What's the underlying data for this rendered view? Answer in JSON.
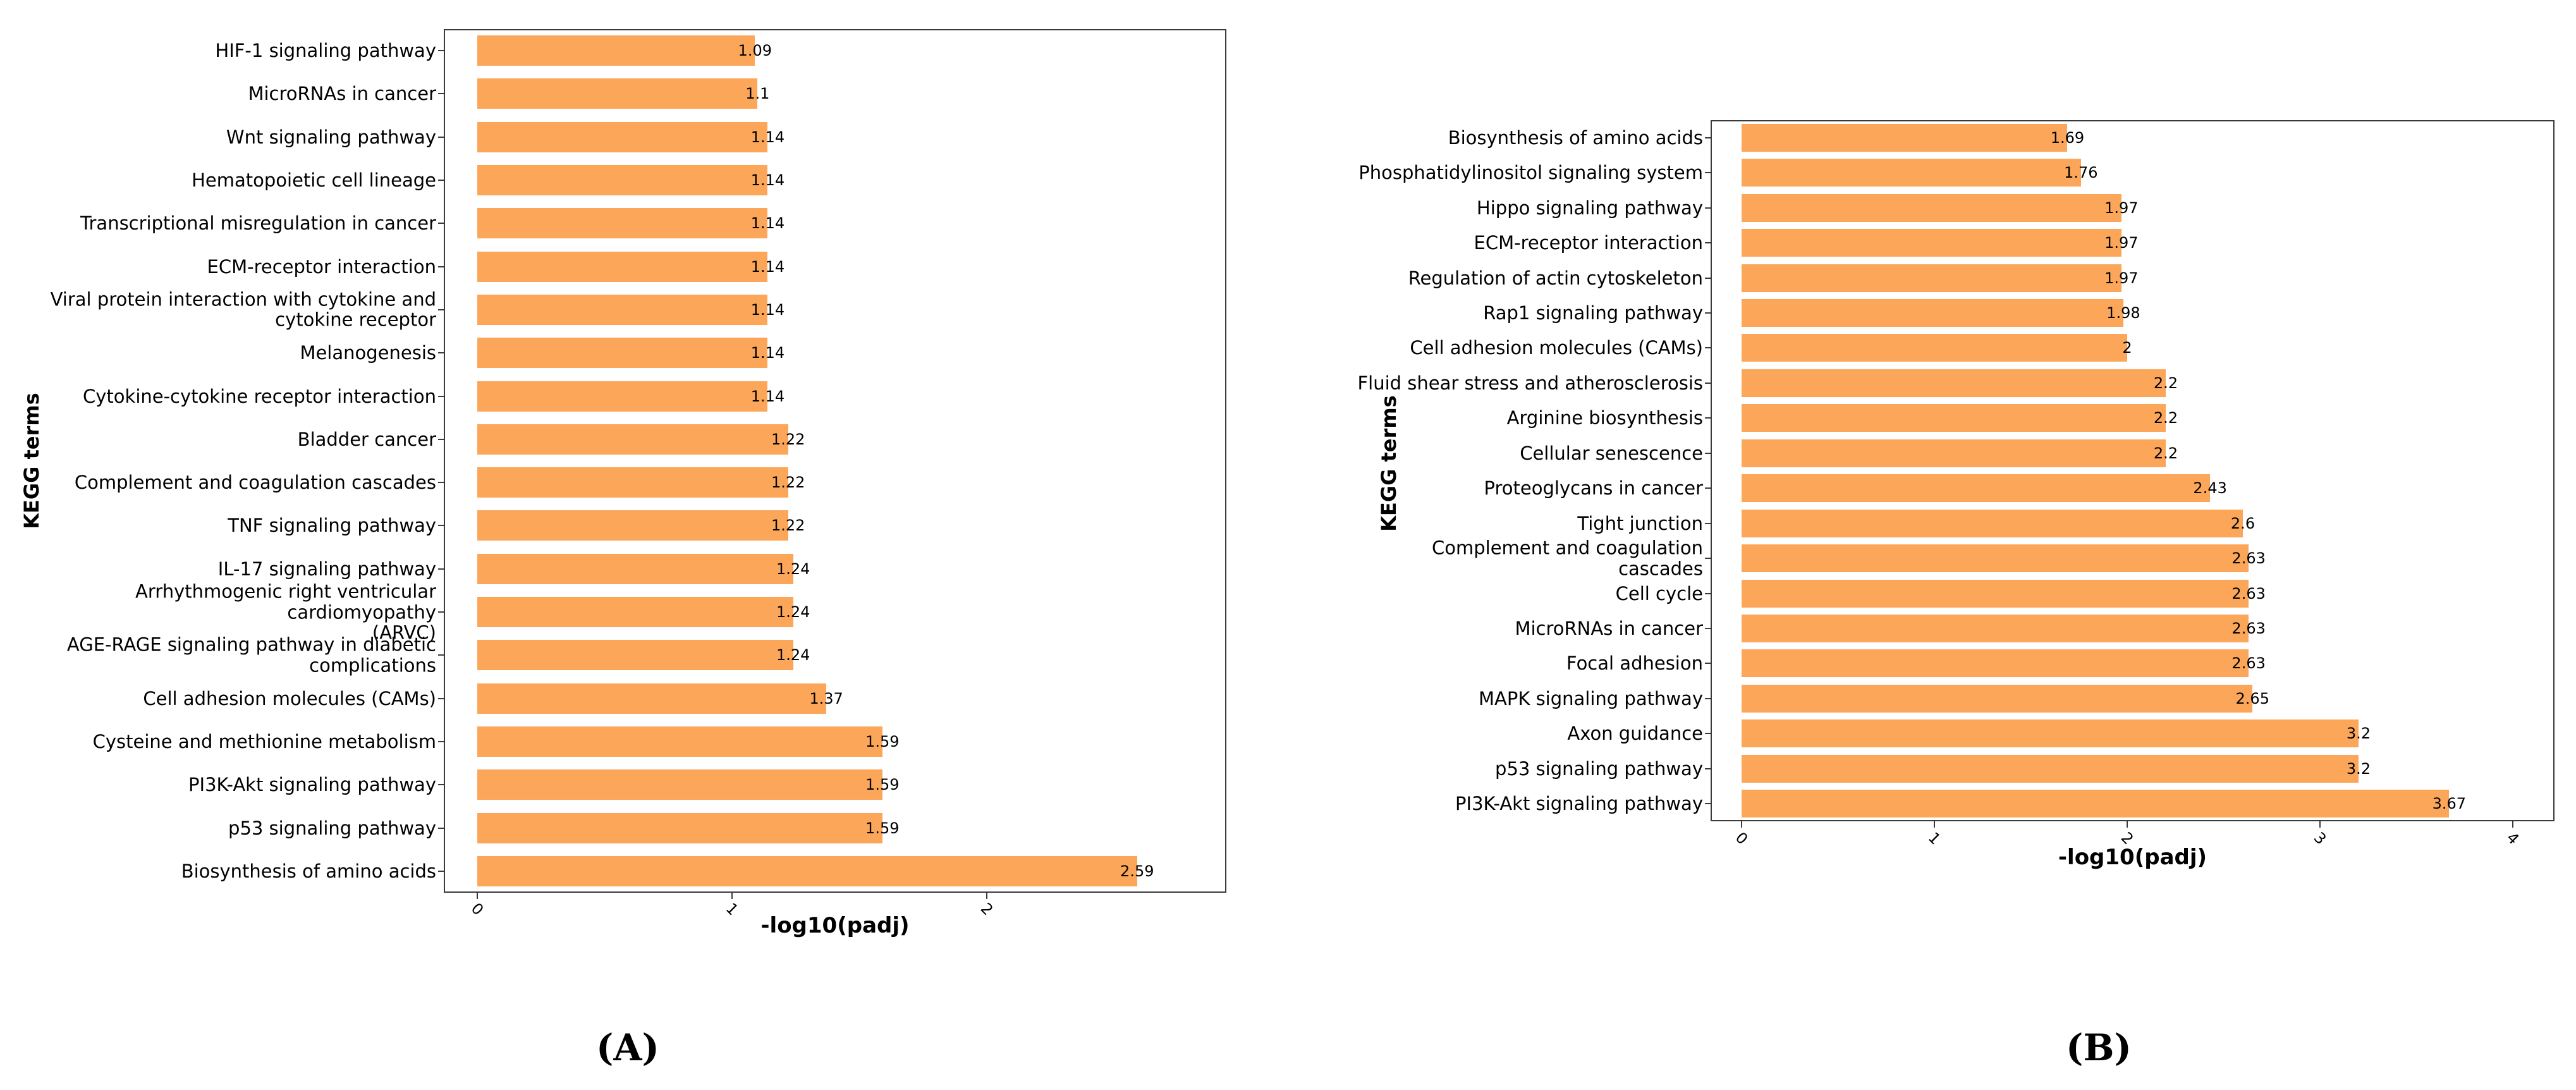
{
  "figure": {
    "caption_a": "(A)",
    "caption_b": "(B)"
  },
  "colors": {
    "bar": "#FCA65A",
    "frame": "#3a3a3a",
    "text": "#000000"
  },
  "chart_data": [
    {
      "type": "bar",
      "orientation": "horizontal",
      "title": "",
      "xlabel": "-log10(padj)",
      "ylabel": "KEGG terms",
      "caption": "(A)",
      "legend": null,
      "grid": false,
      "xlim": [
        0,
        2.95
      ],
      "xticks": [
        0,
        1,
        2
      ],
      "bar_color": "#FCA65A",
      "categories": [
        "HIF-1 signaling pathway",
        "MicroRNAs in cancer",
        "Wnt signaling pathway",
        "Hematopoietic cell lineage",
        "Transcriptional misregulation in cancer",
        "ECM-receptor interaction",
        "Viral protein interaction with cytokine and\ncytokine receptor",
        "Melanogenesis",
        "Cytokine-cytokine receptor interaction",
        "Bladder cancer",
        "Complement and coagulation cascades",
        "TNF signaling pathway",
        "IL-17 signaling pathway",
        "Arrhythmogenic right ventricular cardiomyopathy\n(ARVC)",
        "AGE-RAGE signaling pathway in diabetic\ncomplications",
        "Cell adhesion molecules (CAMs)",
        "Cysteine and methionine metabolism",
        "PI3K-Akt signaling pathway",
        "p53 signaling pathway",
        "Biosynthesis of amino acids"
      ],
      "values": [
        1.09,
        1.1,
        1.14,
        1.14,
        1.14,
        1.14,
        1.14,
        1.14,
        1.14,
        1.22,
        1.22,
        1.22,
        1.24,
        1.24,
        1.24,
        1.37,
        1.59,
        1.59,
        1.59,
        2.59
      ],
      "value_labels": [
        "1.09",
        "1.1",
        "1.14",
        "1.14",
        "1.14",
        "1.14",
        "1.14",
        "1.14",
        "1.14",
        "1.22",
        "1.22",
        "1.22",
        "1.24",
        "1.24",
        "1.24",
        "1.37",
        "1.59",
        "1.59",
        "1.59",
        "2.59"
      ]
    },
    {
      "type": "bar",
      "orientation": "horizontal",
      "title": "",
      "xlabel": "-log10(padj)",
      "ylabel": "KEGG terms",
      "caption": "(B)",
      "legend": null,
      "grid": false,
      "xlim": [
        0,
        4.22
      ],
      "xticks": [
        0,
        1,
        2,
        3,
        4
      ],
      "bar_color": "#FCA65A",
      "categories": [
        "Biosynthesis of amino acids",
        "Phosphatidylinositol signaling system",
        "Hippo signaling pathway",
        "ECM-receptor interaction",
        "Regulation of actin cytoskeleton",
        "Rap1 signaling pathway",
        "Cell adhesion molecules (CAMs)",
        "Fluid shear stress and atherosclerosis",
        "Arginine biosynthesis",
        "Cellular senescence",
        "Proteoglycans in cancer",
        "Tight junction",
        "Complement and coagulation cascades",
        "Cell cycle",
        "MicroRNAs in cancer",
        "Focal adhesion",
        "MAPK signaling pathway",
        "Axon guidance",
        "p53 signaling pathway",
        "PI3K-Akt signaling pathway"
      ],
      "values": [
        1.69,
        1.76,
        1.97,
        1.97,
        1.97,
        1.98,
        2,
        2.2,
        2.2,
        2.2,
        2.43,
        2.6,
        2.63,
        2.63,
        2.63,
        2.63,
        2.65,
        3.2,
        3.2,
        3.67
      ],
      "value_labels": [
        "1.69",
        "1.76",
        "1.97",
        "1.97",
        "1.97",
        "1.98",
        "2",
        "2.2",
        "2.2",
        "2.2",
        "2.43",
        "2.6",
        "2.63",
        "2.63",
        "2.63",
        "2.63",
        "2.65",
        "3.2",
        "3.2",
        "3.67"
      ]
    }
  ]
}
